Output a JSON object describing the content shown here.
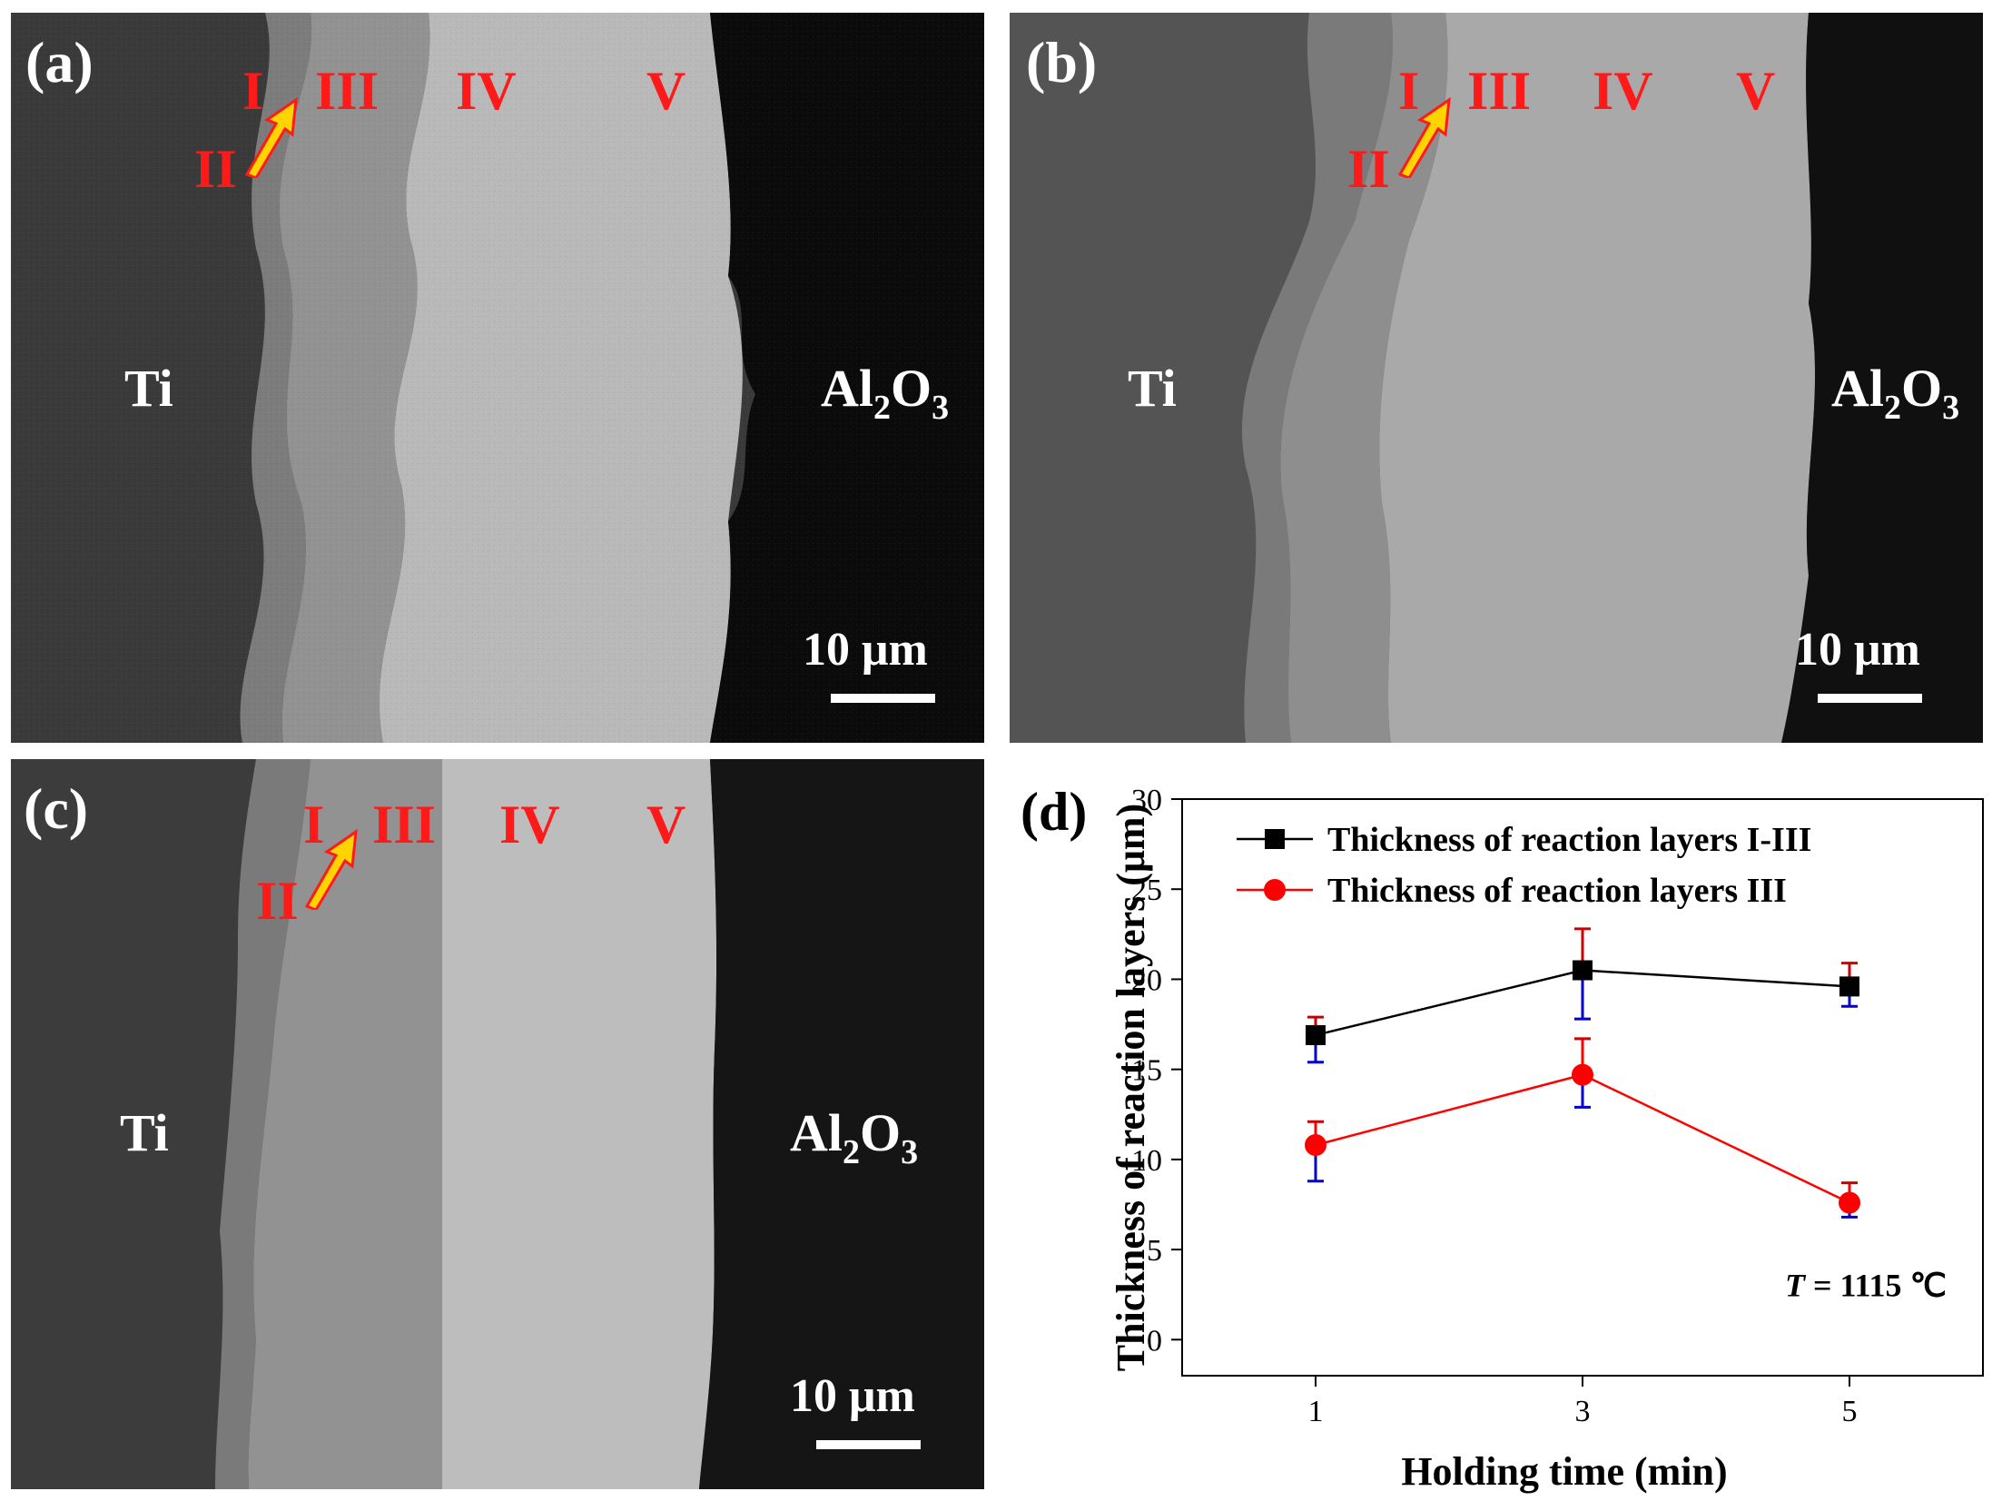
{
  "panels": {
    "a": {
      "label": "(a)",
      "layers": [
        "I",
        "II",
        "III",
        "IV",
        "V"
      ],
      "left_phase": "Ti",
      "right_phase": {
        "main": "Al",
        "sub1": "2",
        "mid": "O",
        "sub2": "3"
      },
      "scale": "10 μm"
    },
    "b": {
      "label": "(b)",
      "layers": [
        "I",
        "II",
        "III",
        "IV",
        "V"
      ],
      "left_phase": "Ti",
      "right_phase": {
        "main": "Al",
        "sub1": "2",
        "mid": "O",
        "sub2": "3"
      },
      "scale": "10 μm"
    },
    "c": {
      "label": "(c)",
      "layers": [
        "I",
        "II",
        "III",
        "IV",
        "V"
      ],
      "left_phase": "Ti",
      "right_phase": {
        "main": "Al",
        "sub1": "2",
        "mid": "O",
        "sub2": "3"
      },
      "scale": "10 μm"
    },
    "d": {
      "label": "(d)"
    }
  },
  "colors": {
    "layer_label": "#ff1a1a",
    "arrow_fill": "#ffd400",
    "arrow_outline": "#ff1a1a",
    "series1": "#000000",
    "series2": "#ff0000",
    "errorbar1": "#0000cc"
  },
  "chart_data": {
    "type": "line",
    "xlabel": "Holding time (min)",
    "ylabel": "Thickness of reaction layers (μm)",
    "x": [
      1,
      3,
      5
    ],
    "x_ticks": [
      "1",
      "3",
      "5"
    ],
    "xlim": [
      -0.0,
      6.0
    ],
    "ylim": [
      -2,
      30
    ],
    "y_ticks": [
      "0",
      "5",
      "10",
      "15",
      "20",
      "25",
      "30"
    ],
    "annotation": {
      "italic": "T",
      "rest": " = 1115 ℃"
    },
    "legend_position": "top-right",
    "series": [
      {
        "name": "Thickness of reaction layers I-III",
        "marker": "square",
        "values": [
          16.9,
          20.5,
          19.6
        ],
        "err_low": [
          15.4,
          17.8,
          18.5
        ],
        "err_high": [
          17.9,
          22.8,
          20.9
        ]
      },
      {
        "name": "Thickness of reaction layers III",
        "marker": "circle",
        "values": [
          10.8,
          14.7,
          7.6
        ],
        "err_low": [
          8.8,
          12.9,
          6.8
        ],
        "err_high": [
          12.1,
          16.7,
          8.7
        ]
      }
    ]
  }
}
